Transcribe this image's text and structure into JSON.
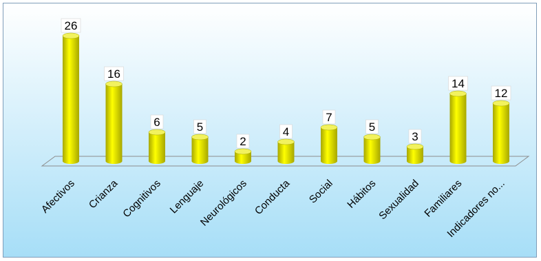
{
  "colors": {
    "background_top": "#ffffff",
    "background_bottom": "#a6def7",
    "bar": "#ffff00",
    "bar_dark": "#a7a700",
    "bar_top": "#f2f25e",
    "floor_stroke": "#8c8c8c"
  },
  "chart_data": {
    "type": "bar",
    "style": "3d-cylinder",
    "categories": [
      "Afectivos",
      "Crianza",
      "Cognitivos",
      "Lenguaje",
      "Neurológicos",
      "Conducta",
      "Social",
      "Hábitos",
      "Sexualidad",
      "Familiares",
      "Indicadores no..."
    ],
    "values": [
      26,
      16,
      6,
      5,
      2,
      4,
      7,
      5,
      3,
      14,
      12
    ],
    "title": "",
    "xlabel": "",
    "ylabel": "",
    "ylim": [
      0,
      26
    ],
    "grid": false,
    "legend": "none",
    "data_labels": true
  }
}
